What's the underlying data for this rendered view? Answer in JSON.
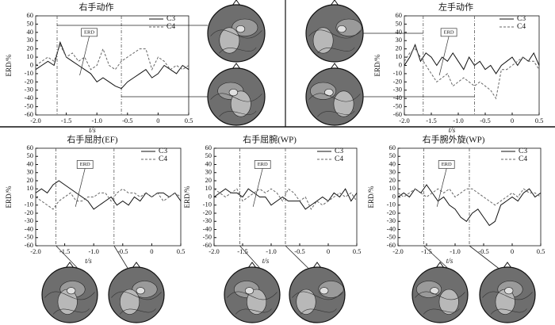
{
  "chart_data": [
    {
      "type": "line",
      "title": "右手动作",
      "ylabel": "ERD/%",
      "xlabel": "t/s",
      "annotation": "ERD",
      "x": [
        -2.0,
        -1.9,
        -1.8,
        -1.7,
        -1.6,
        -1.5,
        -1.4,
        -1.3,
        -1.2,
        -1.1,
        -1.0,
        -0.9,
        -0.8,
        -0.7,
        -0.6,
        -0.5,
        -0.4,
        -0.3,
        -0.2,
        -0.1,
        0,
        0.1,
        0.2,
        0.3,
        0.4,
        0.5
      ],
      "series": [
        {
          "name": "C3",
          "color": "#111111",
          "style": "solid",
          "values": [
            -5,
            0,
            5,
            0,
            28,
            10,
            5,
            0,
            -5,
            -10,
            -20,
            -15,
            -20,
            -25,
            -28,
            -20,
            -15,
            -10,
            -5,
            -15,
            -10,
            0,
            -5,
            -10,
            0,
            -5
          ]
        },
        {
          "name": "C4",
          "color": "#666666",
          "style": "dashed",
          "values": [
            0,
            5,
            10,
            5,
            25,
            10,
            15,
            5,
            10,
            -5,
            0,
            20,
            0,
            -5,
            5,
            10,
            15,
            20,
            20,
            -5,
            10,
            5,
            -5,
            0,
            -5,
            0
          ]
        }
      ],
      "vlines": [
        -1.65,
        -0.6
      ],
      "xlim": [
        -2.0,
        0.5
      ],
      "ylim": [
        -60,
        60
      ],
      "xticks": [
        {
          "value": -2,
          "label": "-2.0"
        },
        -1.5,
        {
          "value": -1,
          "label": "-1.0"
        },
        -0.5,
        0,
        0.5
      ],
      "yticks": [
        60,
        50,
        40,
        30,
        20,
        10,
        0,
        -10,
        -20,
        -30,
        -40,
        -50,
        -60
      ]
    },
    {
      "type": "line",
      "title": "左手动作",
      "ylabel": "ERD/%",
      "xlabel": "t/s",
      "annotation": "ERD",
      "x": [
        -2.0,
        -1.9,
        -1.8,
        -1.7,
        -1.6,
        -1.5,
        -1.4,
        -1.3,
        -1.2,
        -1.1,
        -1.0,
        -0.9,
        -0.8,
        -0.7,
        -0.6,
        -0.5,
        -0.4,
        -0.3,
        -0.2,
        -0.1,
        0,
        0.1,
        0.2,
        0.3,
        0.4,
        0.5
      ],
      "series": [
        {
          "name": "C3",
          "color": "#111111",
          "style": "solid",
          "values": [
            0,
            10,
            25,
            5,
            15,
            10,
            0,
            10,
            5,
            15,
            5,
            -5,
            10,
            0,
            5,
            -5,
            0,
            -10,
            0,
            5,
            10,
            0,
            10,
            5,
            15,
            0
          ]
        },
        {
          "name": "C4",
          "color": "#666666",
          "style": "dashed",
          "values": [
            5,
            15,
            20,
            10,
            0,
            -10,
            -20,
            -15,
            -10,
            -25,
            -20,
            -15,
            -20,
            -25,
            -20,
            -25,
            -30,
            -40,
            -5,
            -5,
            0,
            5,
            10,
            5,
            5,
            -5
          ]
        }
      ],
      "vlines": [
        -1.65,
        -0.7
      ],
      "xlim": [
        -2.0,
        0.5
      ],
      "ylim": [
        -60,
        60
      ],
      "xticks": [
        {
          "value": -2,
          "label": "-2.0"
        },
        -1.5,
        {
          "value": -1,
          "label": "-1.0"
        },
        -0.5,
        0,
        0.5
      ],
      "yticks": [
        60,
        50,
        40,
        30,
        20,
        10,
        0,
        -10,
        -20,
        -30,
        -40,
        -50,
        -60
      ]
    },
    {
      "type": "line",
      "title": "右手屈肘(EF)",
      "ylabel": "ERD/%",
      "xlabel": "t/s",
      "annotation": "ERD",
      "x": [
        -2.0,
        -1.9,
        -1.8,
        -1.7,
        -1.6,
        -1.5,
        -1.4,
        -1.3,
        -1.2,
        -1.1,
        -1.0,
        -0.9,
        -0.8,
        -0.7,
        -0.6,
        -0.5,
        -0.4,
        -0.3,
        -0.2,
        -0.1,
        0,
        0.1,
        0.2,
        0.3,
        0.4,
        0.5
      ],
      "series": [
        {
          "name": "C3",
          "color": "#111111",
          "style": "solid",
          "values": [
            5,
            10,
            5,
            15,
            20,
            15,
            10,
            5,
            0,
            -5,
            -15,
            -10,
            -5,
            0,
            -10,
            -5,
            -10,
            0,
            -5,
            5,
            0,
            5,
            5,
            0,
            5,
            -5
          ]
        },
        {
          "name": "C4",
          "color": "#666666",
          "style": "dashed",
          "values": [
            0,
            -5,
            -10,
            -15,
            -5,
            0,
            5,
            -5,
            -5,
            0,
            0,
            5,
            5,
            -5,
            5,
            10,
            5,
            5,
            0,
            5,
            0,
            5,
            -5,
            0,
            5,
            0
          ]
        }
      ],
      "vlines": [
        -1.65,
        -0.65
      ],
      "xlim": [
        -2.0,
        0.5
      ],
      "ylim": [
        -60,
        60
      ],
      "xticks": [
        {
          "value": -2,
          "label": "-2.0"
        },
        -1.5,
        {
          "value": -1,
          "label": "-1.0"
        },
        -0.5,
        0,
        0.5
      ],
      "yticks": [
        60,
        50,
        40,
        30,
        20,
        10,
        0,
        -10,
        -20,
        -30,
        -40,
        -50,
        -60
      ]
    },
    {
      "type": "line",
      "title": "右手屈腕(WP)",
      "ylabel": "ERD/%",
      "xlabel": "t/s",
      "annotation": "ERD",
      "x": [
        -2.0,
        -1.9,
        -1.8,
        -1.7,
        -1.6,
        -1.5,
        -1.4,
        -1.3,
        -1.2,
        -1.1,
        -1.0,
        -0.9,
        -0.8,
        -0.7,
        -0.6,
        -0.5,
        -0.4,
        -0.3,
        -0.2,
        -0.1,
        0,
        0.1,
        0.2,
        0.3,
        0.4,
        0.5
      ],
      "series": [
        {
          "name": "C3",
          "color": "#111111",
          "style": "solid",
          "values": [
            0,
            5,
            10,
            5,
            5,
            0,
            10,
            5,
            0,
            0,
            -10,
            -5,
            0,
            -5,
            -5,
            -5,
            -15,
            -10,
            -5,
            0,
            -5,
            5,
            0,
            10,
            -5,
            5
          ]
        },
        {
          "name": "C4",
          "color": "#666666",
          "style": "dashed",
          "values": [
            10,
            5,
            0,
            5,
            10,
            -5,
            0,
            5,
            10,
            5,
            10,
            5,
            -5,
            10,
            5,
            -5,
            0,
            -15,
            -5,
            -10,
            -5,
            0,
            5,
            0,
            5,
            -5
          ]
        }
      ],
      "vlines": [
        -1.55,
        -0.75
      ],
      "xlim": [
        -2.0,
        0.5
      ],
      "ylim": [
        -60,
        60
      ],
      "xticks": [
        {
          "value": -2,
          "label": "-2.0"
        },
        -1.5,
        {
          "value": -1,
          "label": "-1.0"
        },
        -0.5,
        0,
        0.5
      ],
      "yticks": [
        60,
        50,
        40,
        30,
        20,
        10,
        0,
        -10,
        -20,
        -30,
        -40,
        -50,
        -60
      ]
    },
    {
      "type": "line",
      "title": "右手腕外旋(WP)",
      "ylabel": "ERD/%",
      "xlabel": "t/s",
      "annotation": "ERD",
      "x": [
        -2.0,
        -1.9,
        -1.8,
        -1.7,
        -1.6,
        -1.5,
        -1.4,
        -1.3,
        -1.2,
        -1.1,
        -1.0,
        -0.9,
        -0.8,
        -0.7,
        -0.6,
        -0.5,
        -0.4,
        -0.3,
        -0.2,
        -0.1,
        0,
        0.1,
        0.2,
        0.3,
        0.4,
        0.5
      ],
      "series": [
        {
          "name": "C3",
          "color": "#111111",
          "style": "solid",
          "values": [
            0,
            5,
            0,
            10,
            5,
            15,
            5,
            -5,
            0,
            -10,
            -15,
            -25,
            -30,
            -20,
            -15,
            -25,
            -35,
            -30,
            -10,
            -5,
            0,
            -5,
            5,
            10,
            0,
            5
          ]
        },
        {
          "name": "C4",
          "color": "#666666",
          "style": "dashed",
          "values": [
            5,
            0,
            5,
            10,
            5,
            0,
            5,
            10,
            5,
            10,
            0,
            5,
            10,
            10,
            5,
            0,
            -5,
            -10,
            -5,
            0,
            5,
            0,
            10,
            5,
            5,
            0
          ]
        }
      ],
      "vlines": [
        -1.55,
        -0.75
      ],
      "xlim": [
        -2.0,
        0.5
      ],
      "ylim": [
        -60,
        60
      ],
      "xticks": [
        {
          "value": -2,
          "label": "-2.0"
        },
        -1.5,
        {
          "value": -1,
          "label": "-1.0"
        },
        -0.5,
        0,
        0.5
      ],
      "yticks": [
        60,
        50,
        40,
        30,
        20,
        10,
        0,
        -10,
        -20,
        -30,
        -40,
        -50,
        -60
      ]
    }
  ]
}
